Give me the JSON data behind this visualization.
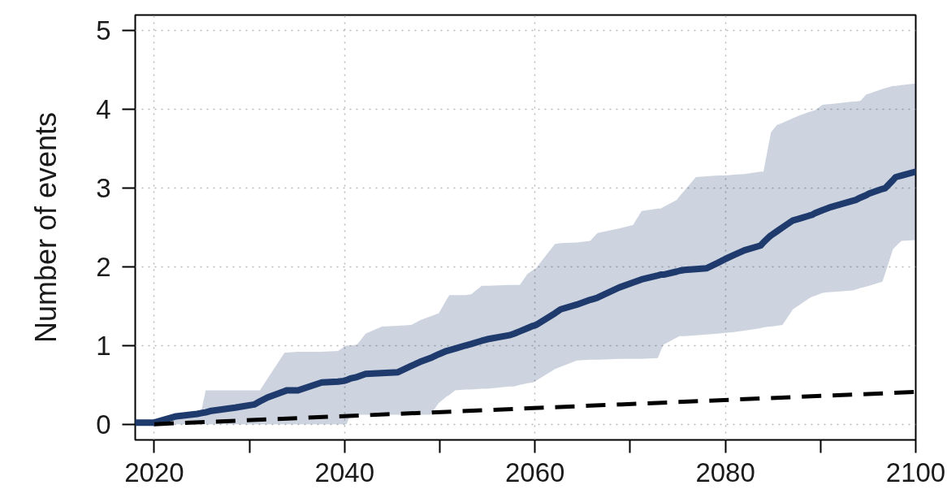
{
  "chart_data": {
    "type": "line",
    "ylabel": "Number of events",
    "xlim": [
      2018,
      2100
    ],
    "xticks": [
      2020,
      {
        "value": 2030,
        "label": null
      },
      2040,
      {
        "value": 2050,
        "label": null
      },
      2060,
      {
        "value": 2070,
        "label": null
      },
      2080,
      {
        "value": 2090,
        "label": null
      },
      2100
    ],
    "ylim": [
      -0.2,
      5.2
    ],
    "yticks": [
      0,
      1,
      2,
      3,
      4,
      5
    ],
    "grid": true,
    "series": [
      {
        "color": "#1f3a6d",
        "line_style": "solid",
        "x": [
          2018,
          2020,
          2022.3,
          2024.5,
          2024.9,
          2025.4,
          2026,
          2028.5,
          2030.5,
          2031.1,
          2031.9,
          2033.7,
          2033.9,
          2035.1,
          2037.6,
          2039.3,
          2039.9,
          2040.2,
          2040.6,
          2041.3,
          2042.2,
          2043.9,
          2045.6,
          2047.0,
          2047.9,
          2049.0,
          2049.9,
          2050.7,
          2051.0,
          2051.6,
          2052.7,
          2053.3,
          2054.4,
          2055.0,
          2057.3,
          2057.8,
          2058.4,
          2059.2,
          2059.8,
          2060.1,
          2062.1,
          2062.7,
          2064.4,
          2065.8,
          2066.4,
          2066.6,
          2068.9,
          2070.3,
          2071.2,
          2072.9,
          2073.2,
          2073.5,
          2074.9,
          2075.2,
          2075.7,
          2076.9,
          2078.0,
          2079.2,
          2080.0,
          2080.9,
          2082.0,
          2083.7,
          2084.0,
          2084.6,
          2084.8,
          2085.4,
          2086.0,
          2087.1,
          2087.7,
          2088.8,
          2089.1,
          2089.4,
          2090.2,
          2091.1,
          2093.4,
          2093.7,
          2094.2,
          2094.8,
          2095.1,
          2096.5,
          2096.8,
          2097.6,
          2097.9,
          2098.5,
          2100
        ],
        "values": [
          0.02,
          0.02,
          0.1,
          0.13,
          0.14,
          0.15,
          0.17,
          0.21,
          0.25,
          0.29,
          0.34,
          0.42,
          0.43,
          0.43,
          0.53,
          0.54,
          0.55,
          0.56,
          0.58,
          0.6,
          0.64,
          0.65,
          0.66,
          0.74,
          0.79,
          0.84,
          0.89,
          0.93,
          0.94,
          0.96,
          1.0,
          1.02,
          1.06,
          1.08,
          1.13,
          1.15,
          1.18,
          1.22,
          1.25,
          1.26,
          1.41,
          1.46,
          1.52,
          1.58,
          1.6,
          1.61,
          1.74,
          1.8,
          1.84,
          1.89,
          1.9,
          1.9,
          1.94,
          1.95,
          1.96,
          1.97,
          1.98,
          2.05,
          2.1,
          2.15,
          2.21,
          2.27,
          2.31,
          2.38,
          2.4,
          2.45,
          2.5,
          2.59,
          2.61,
          2.65,
          2.66,
          2.68,
          2.72,
          2.76,
          2.84,
          2.85,
          2.88,
          2.91,
          2.93,
          2.99,
          3.0,
          3.1,
          3.14,
          3.16,
          3.21
        ],
        "lower": [
          0,
          0,
          0,
          0,
          0,
          0,
          0,
          0,
          0,
          0,
          0,
          0,
          0,
          0,
          0,
          0,
          0,
          0,
          0.12,
          0.12,
          0.12,
          0.12,
          0.12,
          0.12,
          0.12,
          0.12,
          0.27,
          0.35,
          0.37,
          0.43,
          0.44,
          0.44,
          0.45,
          0.45,
          0.48,
          0.48,
          0.5,
          0.52,
          0.53,
          0.55,
          0.7,
          0.73,
          0.81,
          0.82,
          0.82,
          0.82,
          0.83,
          0.83,
          0.83,
          0.84,
          0.93,
          1.01,
          1.1,
          1.12,
          1.12,
          1.13,
          1.14,
          1.15,
          1.16,
          1.17,
          1.19,
          1.22,
          1.23,
          1.24,
          1.24,
          1.25,
          1.26,
          1.46,
          1.51,
          1.6,
          1.62,
          1.63,
          1.67,
          1.68,
          1.7,
          1.71,
          1.73,
          1.75,
          1.76,
          1.81,
          1.92,
          2.22,
          2.26,
          2.33,
          2.34
        ],
        "upper": [
          0.02,
          0.02,
          0.1,
          0.13,
          0.14,
          0.43,
          0.43,
          0.43,
          0.43,
          0.43,
          0.58,
          0.91,
          0.91,
          0.92,
          0.92,
          0.93,
          0.98,
          1.0,
          1.0,
          1.01,
          1.15,
          1.24,
          1.25,
          1.26,
          1.32,
          1.37,
          1.41,
          1.58,
          1.64,
          1.64,
          1.64,
          1.65,
          1.76,
          1.76,
          1.77,
          1.77,
          1.77,
          1.91,
          1.96,
          1.98,
          2.29,
          2.3,
          2.31,
          2.33,
          2.41,
          2.43,
          2.49,
          2.53,
          2.71,
          2.74,
          2.74,
          2.76,
          2.85,
          2.9,
          2.97,
          3.14,
          3.15,
          3.16,
          3.16,
          3.17,
          3.18,
          3.21,
          3.21,
          3.59,
          3.71,
          3.8,
          3.83,
          3.89,
          3.92,
          3.97,
          3.98,
          3.99,
          4.06,
          4.07,
          4.1,
          4.1,
          4.11,
          4.19,
          4.2,
          4.26,
          4.27,
          4.3,
          4.3,
          4.31,
          4.33
        ]
      },
      {
        "color": "#000000",
        "line_style": "dashed",
        "x": [
          2020,
          2100
        ],
        "values": [
          0,
          0.41
        ]
      }
    ]
  }
}
